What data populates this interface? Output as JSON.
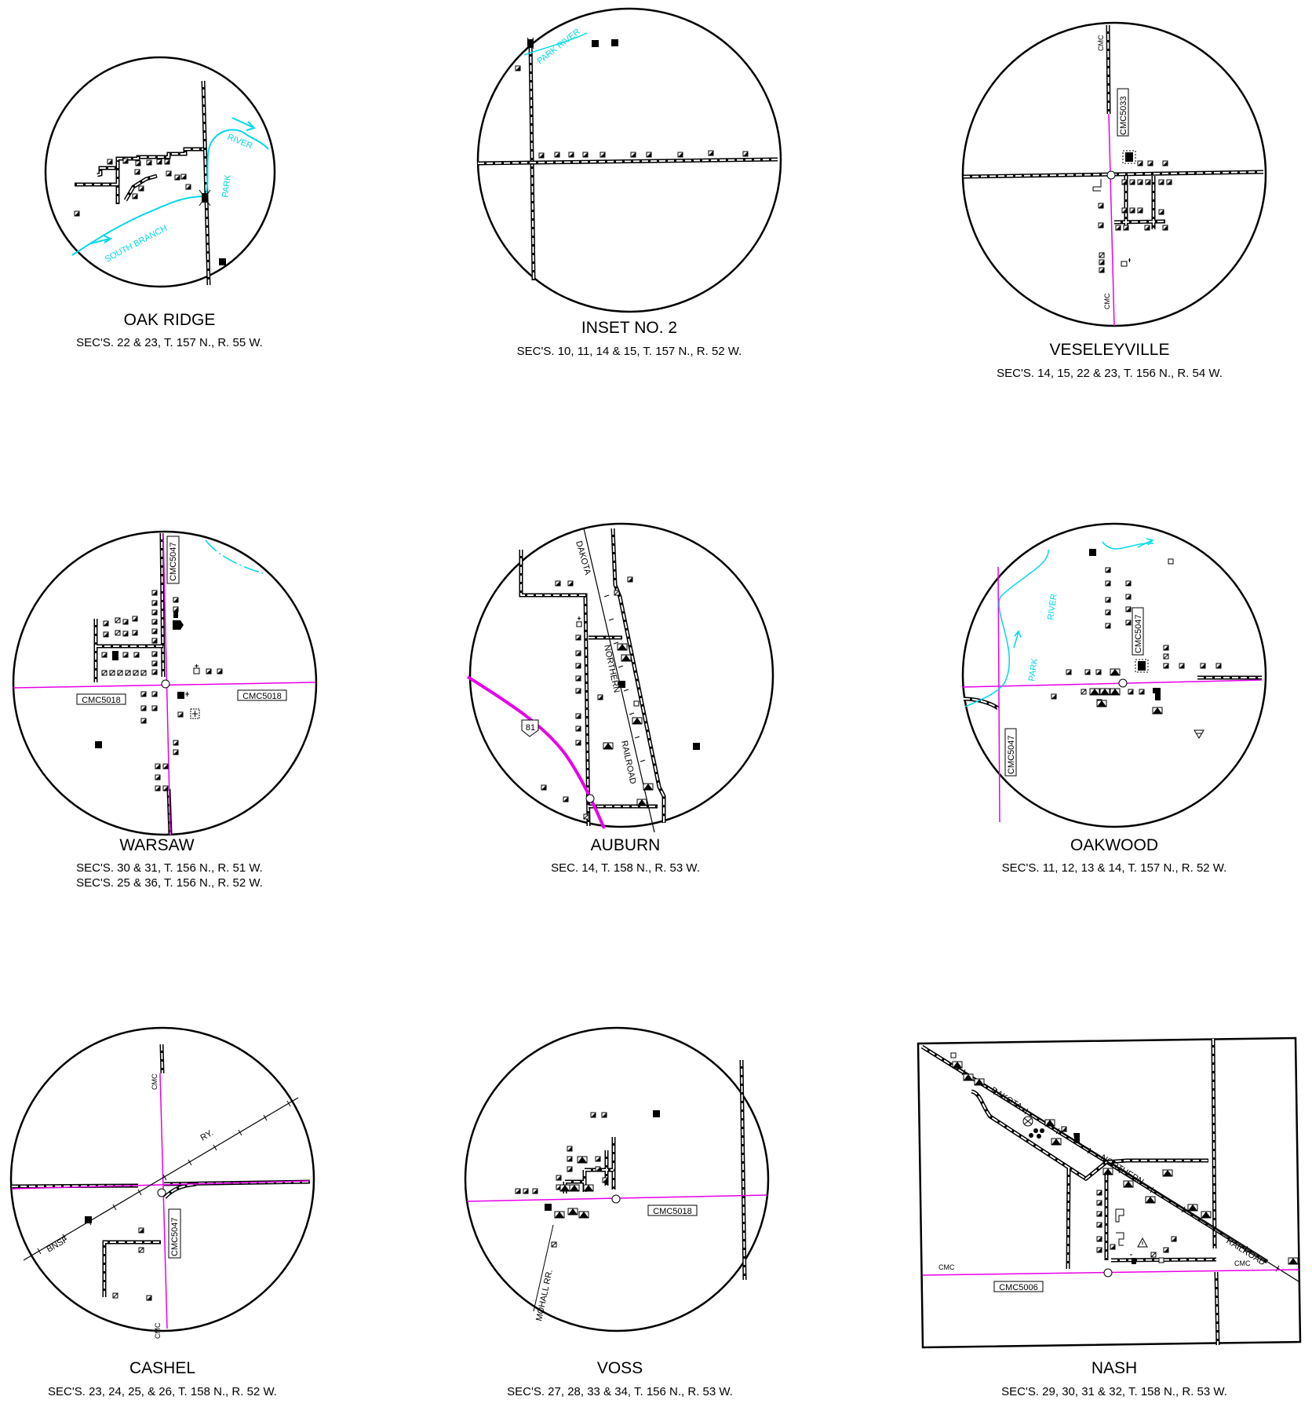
{
  "colors": {
    "highway": "#e800e8",
    "water": "#00d8e8",
    "ink": "#000000"
  },
  "insets": [
    {
      "title": "OAK RIDGE",
      "sections": [
        "SEC'S.   22  & 23, T. 157 N., R. 55 W."
      ],
      "labels": {
        "river": "RIVER",
        "park": "PARK",
        "south_branch": "SOUTH BRANCH"
      }
    },
    {
      "title": "INSET NO. 2",
      "sections": [
        "SEC'S.  10, 11, 14  & 15, T. 157 N., R. 52 W."
      ],
      "labels": {
        "park_river": "PARK RIVER"
      }
    },
    {
      "title": "VESELEYVILLE",
      "sections": [
        "SEC'S.  14, 15, 22  & 23, T. 156 N., R. 54 W."
      ],
      "labels": {
        "route": "CMC5033",
        "cmc_top": "CMC",
        "cmc_bottom": "CMC"
      }
    },
    {
      "title": "WARSAW",
      "sections": [
        "SEC'S.  30  & 31, T. 156 N., R. 51 W.",
        "SEC'S.  25  & 36, T. 156 N., R. 52 W."
      ],
      "labels": {
        "route_v": "CMC5047",
        "route_w": "CMC5018",
        "route_e": "CMC5018"
      }
    },
    {
      "title": "AUBURN",
      "sections": [
        "SEC.  14, T. 158 N., R. 53 W."
      ],
      "labels": {
        "dakota": "DAKOTA",
        "northern": "NORTHERN",
        "railroad": "RAILROAD",
        "us_route": "81"
      }
    },
    {
      "title": "OAKWOOD",
      "sections": [
        "SEC'S.  11, 12, 13  & 14, T. 157 N., R. 52 W."
      ],
      "labels": {
        "river": "RIVER",
        "park": "PARK",
        "route_n": "CMC5047",
        "route_s": "CMC5047"
      }
    },
    {
      "title": "CASHEL",
      "sections": [
        "SEC'S.  23, 24, 25,  & 26, T. 158 N., R. 52 W."
      ],
      "labels": {
        "ry": "RY.",
        "bnsf": "BNSF",
        "route": "CMC5047",
        "cmc_top": "CMC",
        "cmc_bottom": "CMC"
      }
    },
    {
      "title": "VOSS",
      "sections": [
        "SEC'S.  27, 28, 33  & 34, T. 156 N., R. 53 W."
      ],
      "labels": {
        "route": "CMC5018",
        "mohall": "MOHALL RR."
      }
    },
    {
      "title": "NASH",
      "sections": [
        "SEC'S.  29, 30, 31  & 32, T. 158 N., R. 53 W."
      ],
      "labels": {
        "dakota": "DAKOTA",
        "northern": "NORTHERN",
        "railroad": "RAILROAD",
        "route": "CMC5006",
        "cmc_w": "CMC",
        "cmc_e": "CMC"
      }
    }
  ]
}
